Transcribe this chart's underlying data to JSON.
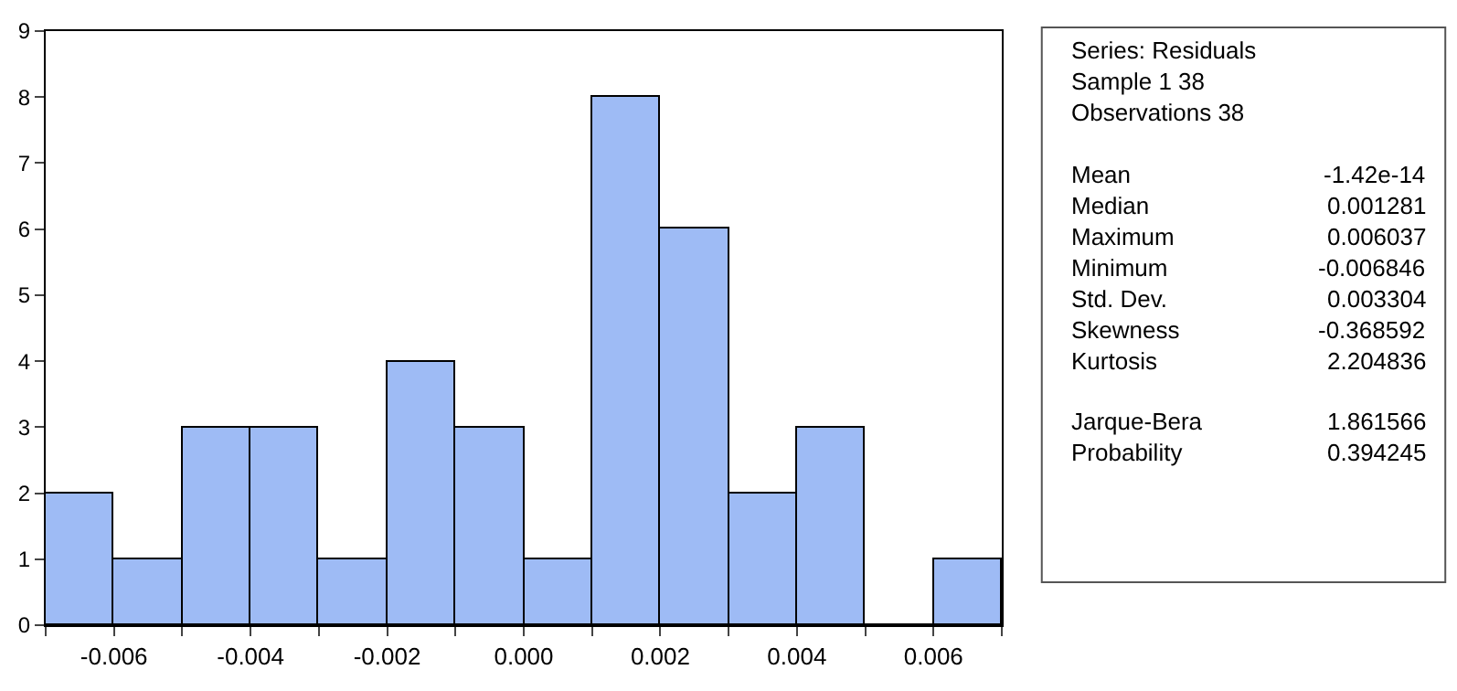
{
  "chart_data": {
    "type": "histogram",
    "bins": [
      -0.007,
      -0.006,
      -0.005,
      -0.004,
      -0.003,
      -0.002,
      -0.001,
      0.0,
      0.001,
      0.002,
      0.003,
      0.004,
      0.005,
      0.006,
      0.007
    ],
    "values": [
      2,
      1,
      3,
      3,
      1,
      4,
      3,
      1,
      8,
      6,
      2,
      3,
      0,
      1
    ],
    "color": "#9ebbf5",
    "xlim": [
      -0.007,
      0.007
    ],
    "xticks": [
      {
        "value": -0.007,
        "label": null
      },
      {
        "value": -0.006,
        "label": "-0.006"
      },
      {
        "value": -0.005,
        "label": null
      },
      {
        "value": -0.004,
        "label": "-0.004"
      },
      {
        "value": -0.003,
        "label": null
      },
      {
        "value": -0.002,
        "label": "-0.002"
      },
      {
        "value": -0.001,
        "label": null
      },
      {
        "value": 0.0,
        "label": "0.000"
      },
      {
        "value": 0.001,
        "label": null
      },
      {
        "value": 0.002,
        "label": "0.002"
      },
      {
        "value": 0.003,
        "label": null
      },
      {
        "value": 0.004,
        "label": "0.004"
      },
      {
        "value": 0.005,
        "label": null
      },
      {
        "value": 0.006,
        "label": "0.006"
      },
      {
        "value": 0.007,
        "label": null
      }
    ],
    "ylim": [
      0,
      9
    ],
    "yticks": [
      0,
      1,
      2,
      3,
      4,
      5,
      6,
      7,
      8,
      9
    ],
    "annotations": [
      "Series: Residuals",
      "Sample 1 38",
      "Observations 38",
      "Mean",
      "-1.42e-14",
      "Median",
      "0.001281",
      "Maximum",
      "0.006037",
      "Minimum",
      "-0.006846",
      "Std. Dev.",
      "0.003304",
      "Skewness",
      "-0.368592",
      "Kurtosis",
      "2.204836",
      "Jarque-Bera",
      "1.861566",
      "Probability",
      "0.394245"
    ]
  }
}
